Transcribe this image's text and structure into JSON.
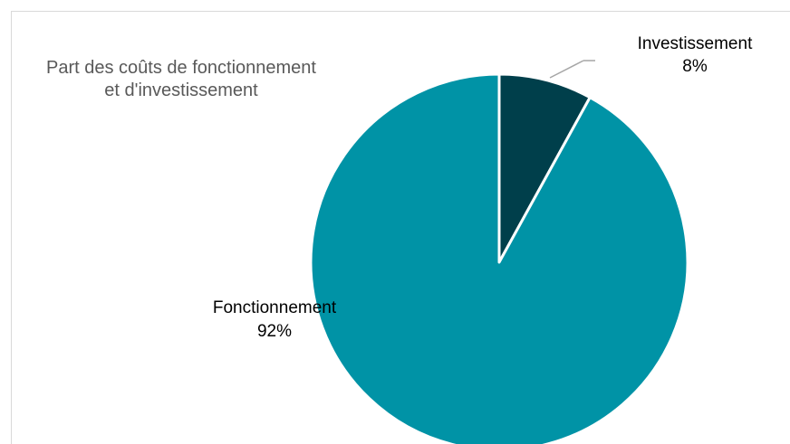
{
  "chart_data": {
    "type": "pie",
    "title_lines": [
      "Part des coûts de fonctionnement",
      "et d'investissement"
    ],
    "categories": [
      "Investissement",
      "Fonctionnement"
    ],
    "values": [
      8,
      92
    ],
    "value_labels": [
      "8%",
      "92%"
    ],
    "colors": [
      "#003f4b",
      "#0093a6"
    ],
    "slice_border_color": "#ffffff",
    "leader_line_color": "#a6a6a6",
    "frame_color": "#d9d9d9",
    "title_color": "#595959",
    "label_color": "#000000"
  }
}
